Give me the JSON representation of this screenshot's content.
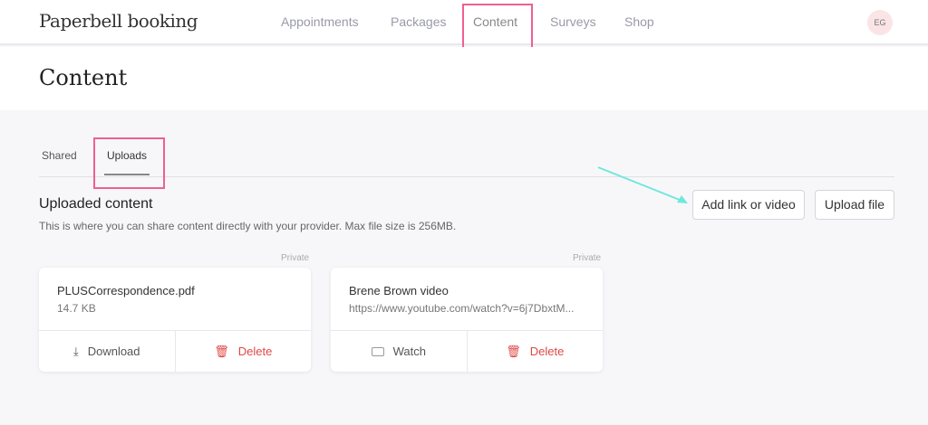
{
  "brand": "Paperbell booking",
  "nav": [
    "Appointments",
    "Packages",
    "Content",
    "Surveys",
    "Shop"
  ],
  "avatar": "EG",
  "page_title": "Content",
  "tabs": [
    "Shared",
    "Uploads"
  ],
  "section": {
    "title": "Uploaded content",
    "description": "This is where you can share content directly with your provider. Max file size is 256MB.",
    "add_link": "Add link or video",
    "upload": "Upload file"
  },
  "cards": [
    {
      "visibility": "Private",
      "name": "PLUSCorrespondence.pdf",
      "sub": "14.7 KB",
      "action": "Download",
      "delete": "Delete"
    },
    {
      "visibility": "Private",
      "name": "Brene Brown video",
      "sub": "https://www.youtube.com/watch?v=6j7DbxtM...",
      "action": "Watch",
      "delete": "Delete"
    }
  ],
  "colors": {
    "highlight": "#ef5f93",
    "arrow": "#6ee8dc",
    "delete": "#e04848"
  }
}
